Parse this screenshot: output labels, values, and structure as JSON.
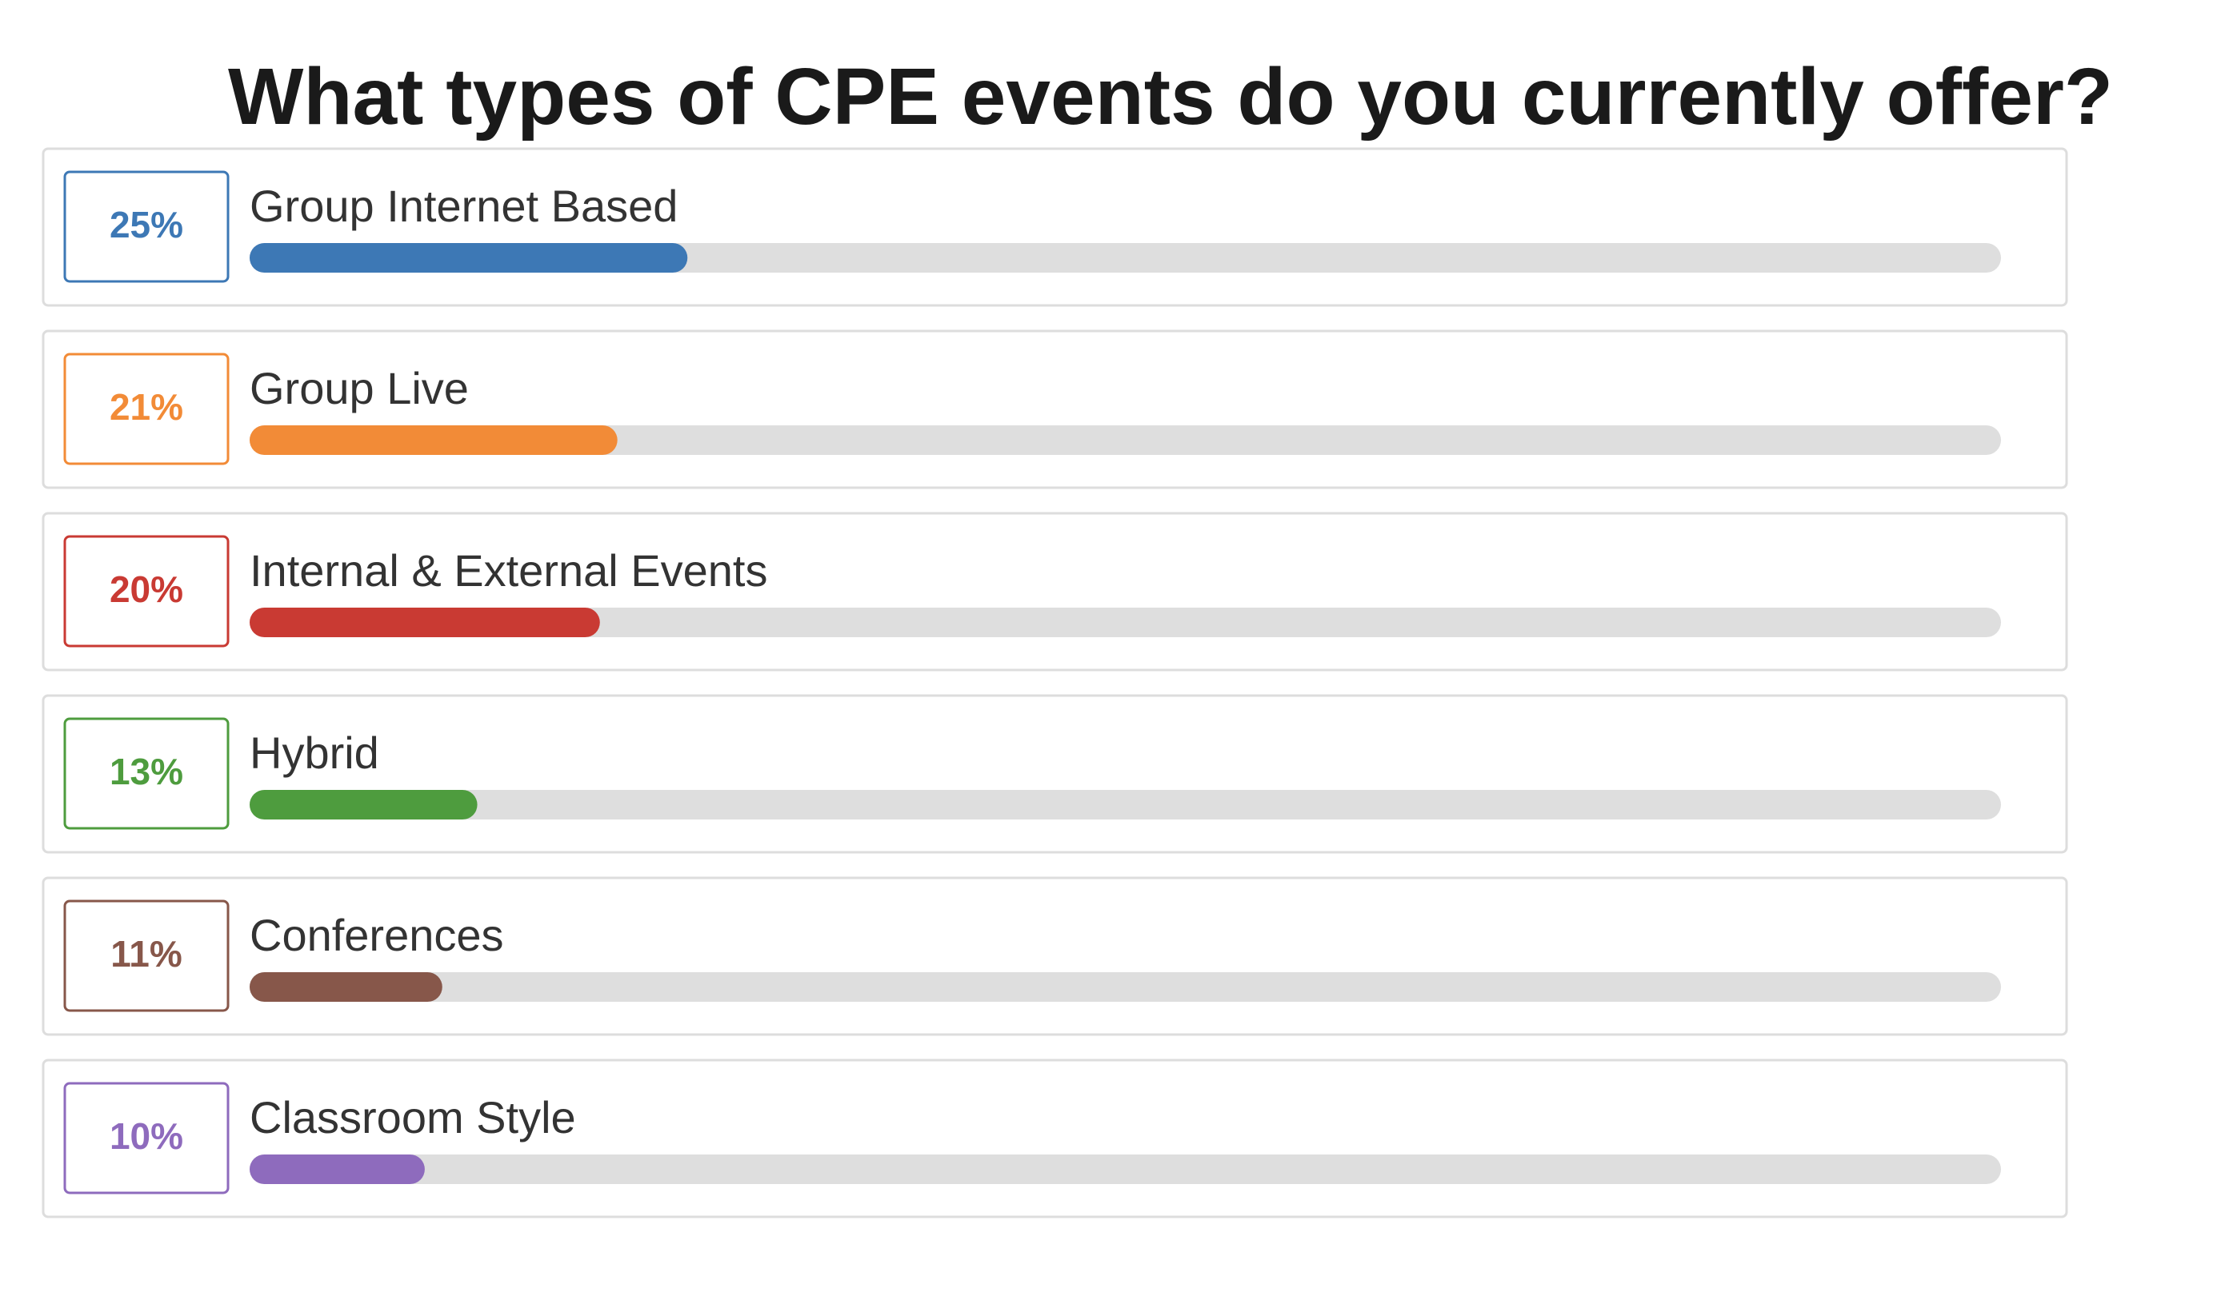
{
  "chart_data": {
    "type": "bar",
    "title": "What types of CPE events do you currently offer?",
    "categories": [
      "Group Internet Based",
      "Group Live",
      "Internal & External Events",
      "Hybrid",
      "Conferences",
      "Classroom Style"
    ],
    "values": [
      25,
      21,
      20,
      13,
      11,
      10
    ],
    "value_labels": [
      "25%",
      "21%",
      "20%",
      "13%",
      "11%",
      "10%"
    ],
    "colors": [
      "#3d78b5",
      "#f28b37",
      "#c93a33",
      "#4e9c3e",
      "#87574a",
      "#8e6bbd"
    ],
    "xlim": [
      0,
      100
    ]
  }
}
